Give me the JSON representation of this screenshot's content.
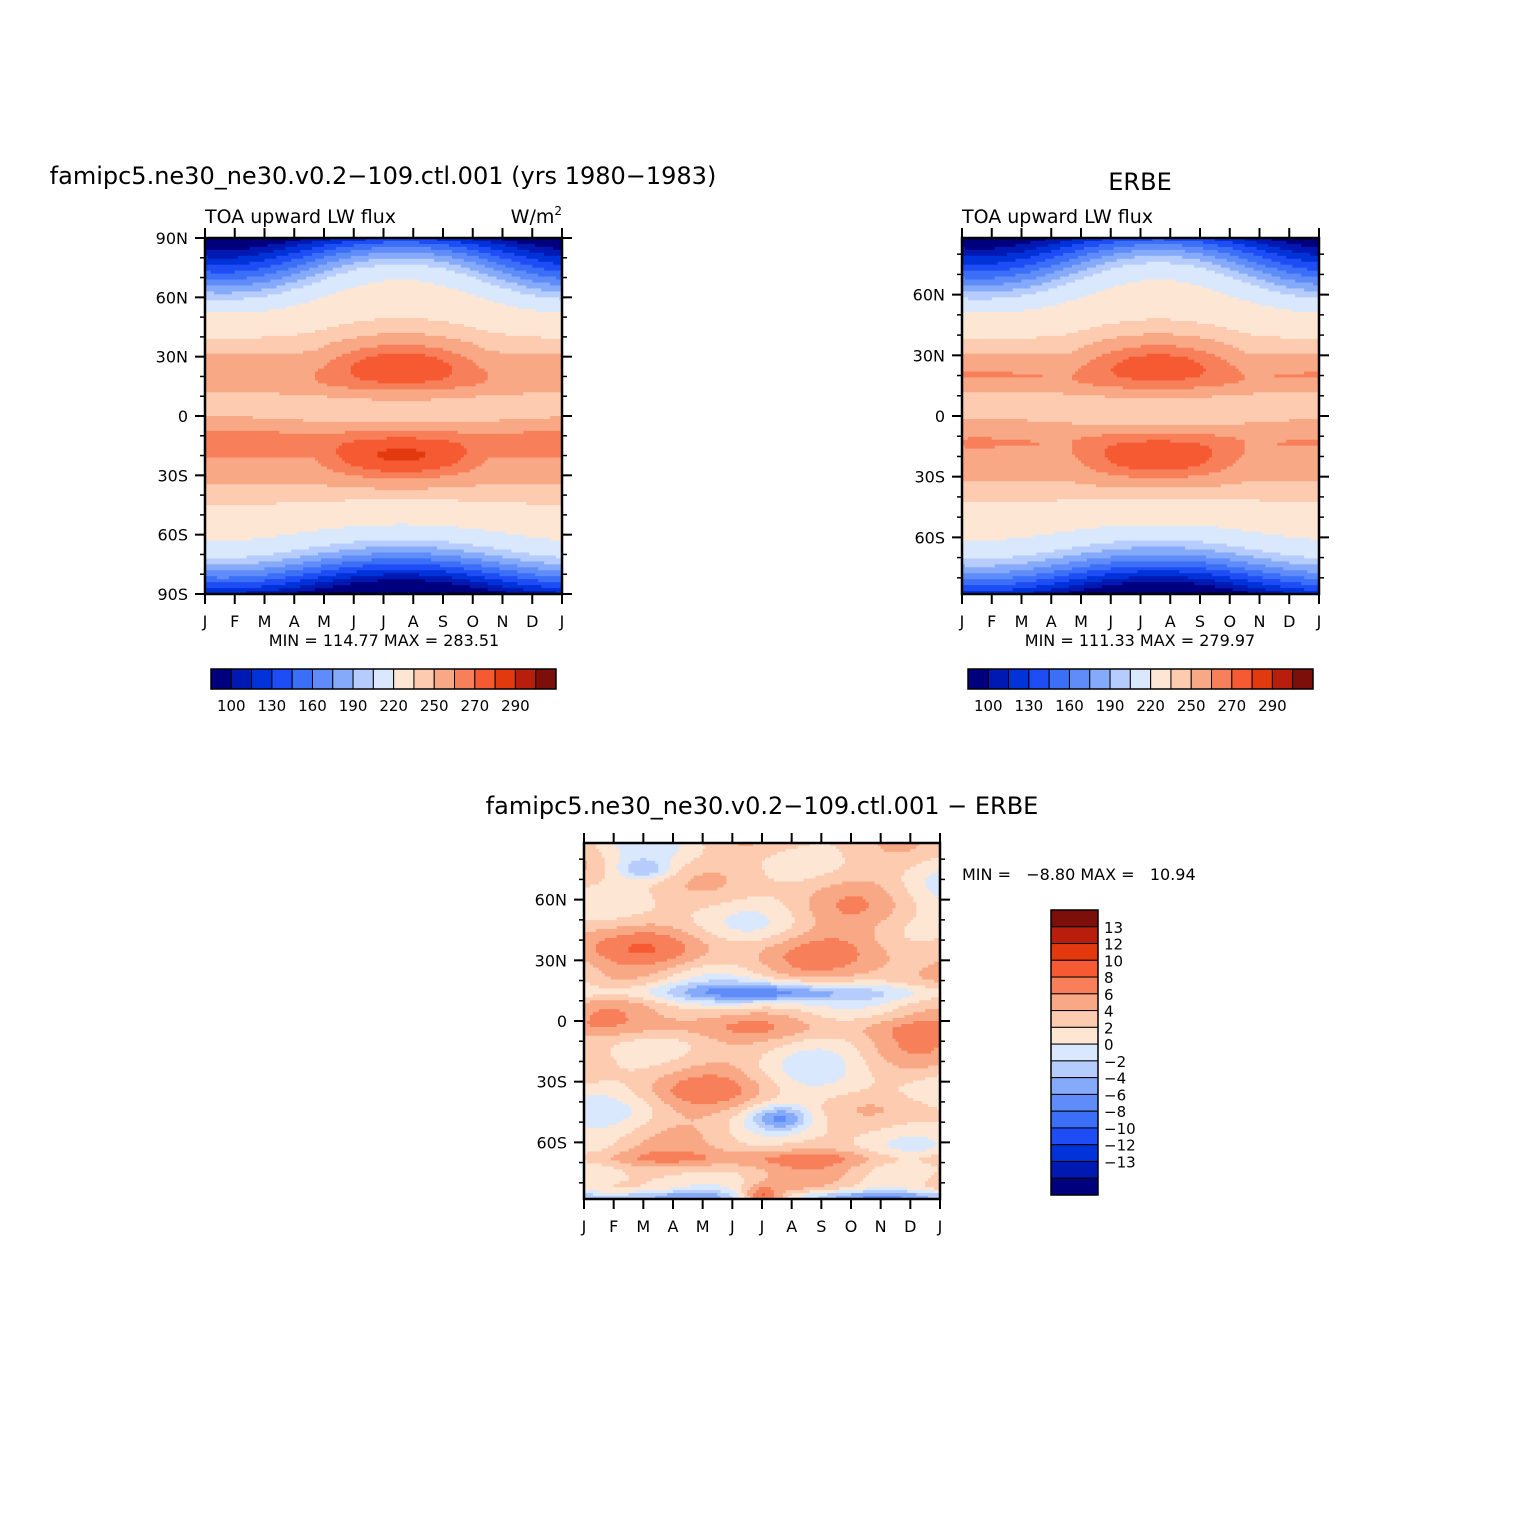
{
  "palette": {
    "abs": [
      "#00007f",
      "#0019b2",
      "#0032d9",
      "#1e4cf5",
      "#3c6ff7",
      "#5f8cf8",
      "#86aafa",
      "#b5ccfc",
      "#dae8fd",
      "#fde6d4",
      "#fccbb0",
      "#f9a886",
      "#f7805b",
      "#f65a33",
      "#e2390e",
      "#b81e0b",
      "#7d0f0a"
    ],
    "diff": [
      "#00007f",
      "#0019b2",
      "#0032d9",
      "#1e4cf5",
      "#3c6ff7",
      "#5f8cf8",
      "#86aafa",
      "#b5ccfc",
      "#dae8fd",
      "#fde6d4",
      "#fccbb0",
      "#f9a886",
      "#f7805b",
      "#f65a33",
      "#e2390e",
      "#b81e0b",
      "#7d0f0a"
    ]
  },
  "chart_data": [
    {
      "id": "model",
      "type": "heatmap",
      "title": "famipc5.ne30_ne30.v0.2−109.ctl.001 (yrs 1980−1983)",
      "subtitle_left": "TOA upward LW flux",
      "subtitle_right": "W/m",
      "subtitle_right_sup": "2",
      "x_tick_labels": [
        "J",
        "F",
        "M",
        "A",
        "M",
        "J",
        "J",
        "A",
        "S",
        "O",
        "N",
        "D",
        "J"
      ],
      "y_tick_labels": [
        "90N",
        "60N",
        "30N",
        "0",
        "30S",
        "60S",
        "90S"
      ],
      "y_tick_values": [
        90,
        60,
        30,
        0,
        -30,
        -60,
        -90
      ],
      "ylim": [
        -90,
        90
      ],
      "stats": "MIN = 114.77 MAX = 283.51",
      "min": 114.77,
      "max": 283.51,
      "colorbar_labels": [
        "100",
        "130",
        "160",
        "190",
        "220",
        "250",
        "270",
        "290"
      ]
    },
    {
      "id": "obs",
      "type": "heatmap",
      "title": "ERBE",
      "subtitle_left": "TOA upward LW flux",
      "x_tick_labels": [
        "J",
        "F",
        "M",
        "A",
        "M",
        "J",
        "J",
        "A",
        "S",
        "O",
        "N",
        "D",
        "J"
      ],
      "y_tick_labels": [
        "60N",
        "30N",
        "0",
        "30S",
        "60S"
      ],
      "y_tick_values": [
        60,
        30,
        0,
        -30,
        -60
      ],
      "ylim": [
        -88,
        88
      ],
      "stats": "MIN = 111.33 MAX = 279.97",
      "min": 111.33,
      "max": 279.97,
      "colorbar_labels": [
        "100",
        "130",
        "160",
        "190",
        "220",
        "250",
        "270",
        "290"
      ]
    },
    {
      "id": "diff",
      "type": "heatmap",
      "title": "famipc5.ne30_ne30.v0.2−109.ctl.001  −  ERBE",
      "x_tick_labels": [
        "J",
        "F",
        "M",
        "A",
        "M",
        "J",
        "J",
        "A",
        "S",
        "O",
        "N",
        "D",
        "J"
      ],
      "y_tick_labels": [
        "60N",
        "30N",
        "0",
        "30S",
        "60S"
      ],
      "y_tick_values": [
        60,
        30,
        0,
        -30,
        -60
      ],
      "ylim": [
        -88,
        88
      ],
      "stats": "MIN =   −8.80 MAX =   10.94",
      "min": -8.8,
      "max": 10.94,
      "colorbar_labels": [
        "13",
        "12",
        "10",
        "8",
        "6",
        "4",
        "2",
        "0",
        "−2",
        "−4",
        "−6",
        "−8",
        "−10",
        "−12",
        "−13"
      ]
    }
  ]
}
